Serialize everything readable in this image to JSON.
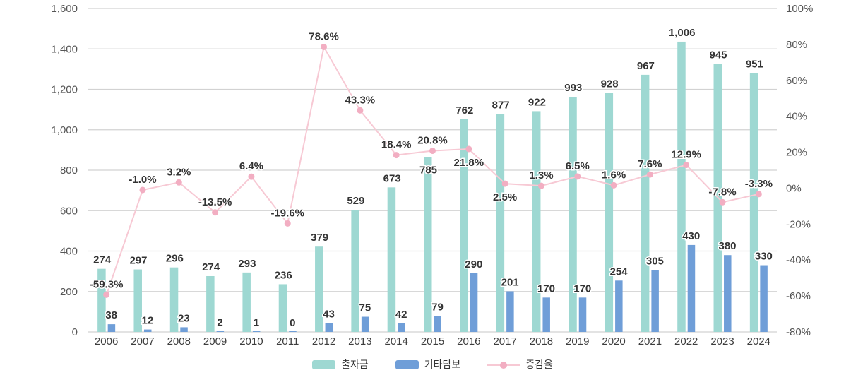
{
  "chart_data": {
    "type": "composite-bar-line",
    "title": "",
    "categories": [
      "2006",
      "2007",
      "2008",
      "2009",
      "2010",
      "2011",
      "2012",
      "2013",
      "2014",
      "2015",
      "2016",
      "2017",
      "2018",
      "2019",
      "2020",
      "2021",
      "2022",
      "2023",
      "2024"
    ],
    "series": [
      {
        "name": "출자금",
        "type": "bar",
        "axis": "left",
        "color": "#9ed8d2",
        "values": [
          274,
          297,
          296,
          274,
          293,
          236,
          379,
          529,
          673,
          785,
          762,
          877,
          922,
          993,
          928,
          967,
          1006,
          945,
          951
        ],
        "labels": [
          "274",
          "297",
          "296",
          "274",
          "293",
          "236",
          "379",
          "529",
          "673",
          "785",
          "762",
          "877",
          "922",
          "993",
          "928",
          "967",
          "1,006",
          "945",
          "951"
        ]
      },
      {
        "name": "기타담보",
        "type": "bar",
        "axis": "left",
        "color": "#6f9ed8",
        "values": [
          38,
          12,
          23,
          2,
          1,
          0,
          43,
          75,
          42,
          79,
          290,
          201,
          170,
          170,
          254,
          305,
          430,
          380,
          330
        ],
        "labels": [
          "38",
          "12",
          "23",
          "2",
          "1",
          "0",
          "43",
          "75",
          "42",
          "79",
          "290",
          "201",
          "170",
          "170",
          "254",
          "305",
          "430",
          "380",
          "330"
        ]
      },
      {
        "name": "증감율",
        "type": "line",
        "axis": "right",
        "color": "#f7c9d4",
        "point_color": "#f2aec2",
        "values": [
          -59.3,
          -1.0,
          3.2,
          -13.5,
          6.4,
          -19.6,
          78.6,
          43.3,
          18.4,
          20.8,
          21.8,
          2.5,
          1.3,
          6.5,
          1.6,
          7.6,
          12.9,
          -7.8,
          -3.3
        ],
        "labels": [
          "-59.3%",
          "-1.0%",
          "3.2%",
          "-13.5%",
          "6.4%",
          "-19.6%",
          "78.6%",
          "43.3%",
          "18.4%",
          "20.8%",
          "21.8%",
          "2.5%",
          "1.3%",
          "6.5%",
          "1.6%",
          "7.6%",
          "12.9%",
          "-7.8%",
          "-3.3%"
        ]
      }
    ],
    "left_axis": {
      "min": 0,
      "max": 1600,
      "step": 200,
      "tick_labels": [
        "0",
        "200",
        "400",
        "600",
        "800",
        "1,000",
        "1,200",
        "1,400",
        "1,600"
      ]
    },
    "right_axis": {
      "min": -80,
      "max": 100,
      "step": 20,
      "tick_labels": [
        "-80%",
        "-60%",
        "-40%",
        "-20%",
        "0%",
        "20%",
        "40%",
        "60%",
        "80%",
        "100%"
      ]
    },
    "grid": "horizontal-only",
    "grid_color": "#d2d2d2",
    "axis_text_color": "#555555",
    "category_text_color": "#3d3d3d",
    "value_label_color": "#333333",
    "legend": {
      "position": "bottom",
      "entries": [
        "출자금",
        "기타담보",
        "증감율"
      ]
    },
    "layout_hints": {
      "teal_bar_height_equals_sum_of_both_bar_series": true,
      "bar1_label_inside_bar_index": 9,
      "line_label_below_point_indices": [
        10,
        11
      ]
    }
  }
}
